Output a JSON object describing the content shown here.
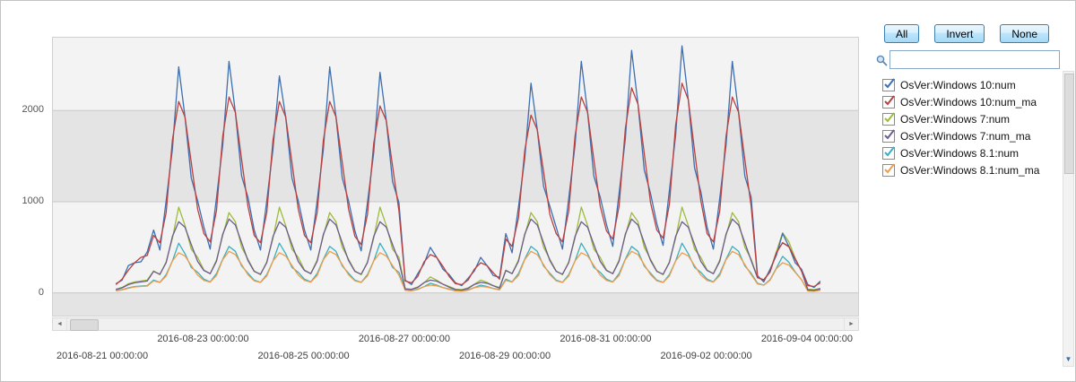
{
  "window": {
    "background": "#ffffff",
    "border_color": "#c3c3c3"
  },
  "side_panel": {
    "buttons": {
      "all": "All",
      "invert": "Invert",
      "none": "None"
    },
    "filter_value": "",
    "button_border_color": "#3c7fb1"
  },
  "icons": {
    "search": "magnifier-icon",
    "scroll_left": "◄",
    "scroll_right": "►",
    "scroll_down": "▼"
  },
  "chart_data": {
    "type": "line",
    "title": "",
    "xlabel": "",
    "ylabel": "",
    "legend_position": "right",
    "grid": "horizontal-bands",
    "x_axis": {
      "origin": "2016-08-21 00:00:00",
      "unit": "hours",
      "start": 6,
      "step": 3,
      "domain": [
        -24,
        360
      ],
      "ticks": [
        {
          "hour": 0,
          "label": "2016-08-21 00:00:00",
          "row": 2
        },
        {
          "hour": 48,
          "label": "2016-08-23 00:00:00",
          "row": 1
        },
        {
          "hour": 96,
          "label": "2016-08-25 00:00:00",
          "row": 2
        },
        {
          "hour": 144,
          "label": "2016-08-27 00:00:00",
          "row": 1
        },
        {
          "hour": 192,
          "label": "2016-08-29 00:00:00",
          "row": 2
        },
        {
          "hour": 240,
          "label": "2016-08-31 00:00:00",
          "row": 1
        },
        {
          "hour": 288,
          "label": "2016-09-02 00:00:00",
          "row": 2
        },
        {
          "hour": 336,
          "label": "2016-09-04 00:00:00",
          "row": 1
        }
      ]
    },
    "y_axis": {
      "ticks": [
        0,
        1000,
        2000
      ],
      "range": [
        -250,
        2800
      ],
      "grid_color": "#c8c8c8",
      "bands": [
        {
          "from": -250,
          "to": 0,
          "color": "#e4e4e4"
        },
        {
          "from": 0,
          "to": 1000,
          "color": "#f3f3f3"
        },
        {
          "from": 1000,
          "to": 2000,
          "color": "#e4e4e4"
        },
        {
          "from": 2000,
          "to": 2800,
          "color": "#f3f3f3"
        }
      ]
    },
    "series": [
      {
        "name": "OsVer:Windows 10:num",
        "color": "#3d6fb0",
        "checked": true,
        "values": [
          100,
          140,
          300,
          330,
          340,
          450,
          690,
          470,
          1010,
          1580,
          2480,
          1930,
          1260,
          1010,
          720,
          480,
          1040,
          1620,
          2540,
          1980,
          1280,
          1050,
          690,
          470,
          1010,
          1580,
          2380,
          1930,
          1260,
          1010,
          690,
          470,
          1010,
          1580,
          2480,
          1930,
          1260,
          1010,
          680,
          460,
          990,
          1540,
          2420,
          1890,
          1220,
          990,
          140,
          90,
          210,
          320,
          500,
          390,
          260,
          200,
          110,
          80,
          160,
          240,
          390,
          300,
          190,
          170,
          650,
          440,
          940,
          1470,
          2300,
          1790,
          1170,
          950,
          720,
          480,
          1040,
          1620,
          2540,
          1980,
          1280,
          1050,
          750,
          510,
          1090,
          1690,
          2660,
          2070,
          1350,
          1090,
          760,
          520,
          1120,
          1730,
          2710,
          2120,
          1370,
          1110,
          720,
          480,
          1040,
          1620,
          2540,
          1980,
          1280,
          1050,
          190,
          120,
          260,
          410,
          650,
          510,
          330,
          260,
          90,
          60,
          130
        ]
      },
      {
        "name": "OsVer:Windows 10:num_ma",
        "color": "#bb4040",
        "checked": true,
        "values": [
          90,
          150,
          250,
          330,
          390,
          410,
          630,
          550,
          880,
          1680,
          2100,
          1930,
          1430,
          920,
          650,
          560,
          900,
          1720,
          2150,
          1980,
          1460,
          950,
          630,
          550,
          880,
          1680,
          2100,
          1930,
          1430,
          920,
          630,
          550,
          880,
          1680,
          2100,
          1930,
          1430,
          920,
          620,
          530,
          860,
          1640,
          2050,
          1890,
          1390,
          900,
          130,
          110,
          180,
          340,
          420,
          390,
          290,
          180,
          100,
          90,
          140,
          260,
          330,
          300,
          220,
          150,
          590,
          510,
          820,
          1560,
          1950,
          1790,
          1330,
          860,
          650,
          560,
          900,
          1720,
          2150,
          1980,
          1460,
          950,
          680,
          590,
          950,
          1800,
          2250,
          2070,
          1530,
          990,
          690,
          600,
          970,
          1840,
          2300,
          2120,
          1560,
          1010,
          650,
          560,
          900,
          1720,
          2150,
          1980,
          1460,
          950,
          170,
          140,
          230,
          440,
          550,
          510,
          370,
          240,
          80,
          70,
          110
        ]
      },
      {
        "name": "OsVer:Windows 7:num",
        "color": "#9dbb3c",
        "checked": true,
        "values": [
          40,
          60,
          100,
          120,
          130,
          140,
          240,
          200,
          340,
          600,
          940,
          740,
          480,
          390,
          250,
          210,
          360,
          630,
          880,
          780,
          500,
          370,
          240,
          200,
          340,
          600,
          940,
          740,
          480,
          390,
          250,
          210,
          360,
          630,
          880,
          780,
          500,
          370,
          240,
          200,
          340,
          600,
          940,
          740,
          480,
          390,
          45,
          40,
          65,
          110,
          175,
          140,
          95,
          70,
          40,
          35,
          55,
          95,
          140,
          115,
          80,
          60,
          250,
          210,
          360,
          630,
          880,
          780,
          500,
          370,
          240,
          200,
          340,
          600,
          940,
          740,
          480,
          390,
          250,
          210,
          360,
          630,
          880,
          780,
          500,
          370,
          240,
          200,
          340,
          600,
          940,
          740,
          480,
          390,
          250,
          210,
          360,
          630,
          880,
          780,
          500,
          370,
          170,
          140,
          240,
          450,
          660,
          560,
          380,
          240,
          40,
          35,
          50
        ]
      },
      {
        "name": "OsVer:Windows 7:num_ma",
        "color": "#6e5c8e",
        "checked": true,
        "values": [
          35,
          55,
          90,
          110,
          120,
          130,
          235,
          205,
          330,
          620,
          780,
          720,
          530,
          345,
          245,
          210,
          345,
          645,
          810,
          745,
          550,
          355,
          235,
          205,
          330,
          620,
          780,
          720,
          530,
          345,
          245,
          210,
          345,
          645,
          810,
          745,
          550,
          355,
          235,
          205,
          330,
          620,
          780,
          720,
          530,
          345,
          42,
          37,
          59,
          112,
          140,
          129,
          95,
          62,
          35,
          30,
          48,
          92,
          115,
          106,
          78,
          51,
          245,
          210,
          345,
          645,
          810,
          745,
          550,
          355,
          235,
          205,
          330,
          620,
          780,
          720,
          530,
          345,
          245,
          210,
          345,
          645,
          810,
          745,
          550,
          355,
          235,
          205,
          330,
          620,
          780,
          720,
          530,
          345,
          245,
          210,
          345,
          645,
          810,
          745,
          550,
          355,
          165,
          145,
          230,
          440,
          550,
          505,
          375,
          240,
          32,
          28,
          44
        ]
      },
      {
        "name": "OsVer:Windows 8.1:num",
        "color": "#3aafbf",
        "checked": true,
        "values": [
          25,
          35,
          55,
          70,
          75,
          80,
          140,
          115,
          200,
          350,
          545,
          430,
          280,
          225,
          150,
          120,
          210,
          370,
          510,
          455,
          295,
          215,
          140,
          115,
          200,
          350,
          545,
          430,
          280,
          225,
          150,
          120,
          210,
          370,
          510,
          455,
          295,
          215,
          140,
          115,
          200,
          350,
          545,
          430,
          280,
          225,
          28,
          24,
          40,
          68,
          105,
          85,
          58,
          43,
          24,
          20,
          34,
          58,
          85,
          70,
          48,
          36,
          150,
          120,
          210,
          370,
          510,
          455,
          295,
          215,
          140,
          115,
          200,
          350,
          545,
          430,
          280,
          225,
          150,
          120,
          210,
          370,
          510,
          455,
          295,
          215,
          140,
          115,
          200,
          350,
          545,
          430,
          280,
          225,
          150,
          120,
          210,
          370,
          510,
          455,
          295,
          215,
          105,
          85,
          145,
          270,
          400,
          335,
          230,
          145,
          25,
          20,
          32
        ]
      },
      {
        "name": "OsVer:Windows 8.1:num_ma",
        "color": "#ef9d49",
        "checked": true,
        "values": [
          22,
          32,
          50,
          65,
          70,
          75,
          132,
          114,
          185,
          350,
          440,
          405,
          300,
          195,
          137,
          118,
          190,
          365,
          455,
          420,
          310,
          200,
          132,
          114,
          185,
          350,
          440,
          405,
          300,
          195,
          137,
          118,
          190,
          365,
          455,
          420,
          310,
          200,
          132,
          114,
          185,
          350,
          440,
          405,
          300,
          195,
          26,
          22,
          36,
          68,
          85,
          78,
          58,
          37,
          21,
          18,
          29,
          56,
          70,
          64,
          48,
          31,
          137,
          118,
          190,
          365,
          455,
          420,
          310,
          200,
          132,
          114,
          185,
          350,
          440,
          405,
          300,
          195,
          137,
          118,
          190,
          365,
          455,
          420,
          310,
          200,
          132,
          114,
          185,
          350,
          440,
          405,
          300,
          195,
          137,
          118,
          190,
          365,
          455,
          420,
          310,
          200,
          98,
          85,
          138,
          265,
          330,
          305,
          225,
          145,
          20,
          17,
          28
        ]
      }
    ]
  }
}
